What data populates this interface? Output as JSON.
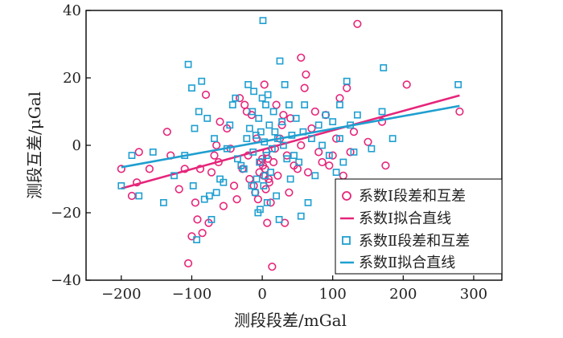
{
  "colors": {
    "series1": "#e6257a",
    "series2": "#1f9fd0",
    "axis": "#000000",
    "text": "#222222"
  },
  "chart_data": {
    "type": "scatter",
    "title": "",
    "xlabel": "测段段差/mGal",
    "ylabel": "测段互差/μGal",
    "xlim": [
      -250,
      340
    ],
    "ylim": [
      -40,
      40
    ],
    "xticks": [
      -200,
      -100,
      0,
      100,
      200,
      300
    ],
    "yticks": [
      -40,
      -20,
      0,
      20,
      40
    ],
    "grid": false,
    "legend_position": "bottom-right",
    "series": [
      {
        "name": "系数Ⅰ段差和互差",
        "marker": "circle",
        "color": "#e6257a",
        "points": [
          [
            -200,
            -7
          ],
          [
            -185,
            -15
          ],
          [
            -178,
            -11
          ],
          [
            -175,
            -2
          ],
          [
            -160,
            -7
          ],
          [
            -135,
            4
          ],
          [
            -130,
            -3
          ],
          [
            -118,
            -13
          ],
          [
            -110,
            -7
          ],
          [
            -105,
            -35
          ],
          [
            -100,
            -27
          ],
          [
            -95,
            -17
          ],
          [
            -92,
            -22
          ],
          [
            -88,
            -7
          ],
          [
            -85,
            -26
          ],
          [
            -80,
            15
          ],
          [
            -76,
            -23
          ],
          [
            -72,
            -8
          ],
          [
            -68,
            -3
          ],
          [
            -65,
            0
          ],
          [
            -62,
            -5
          ],
          [
            -60,
            7
          ],
          [
            -55,
            -18
          ],
          [
            -50,
            5
          ],
          [
            -45,
            -1
          ],
          [
            -40,
            -12
          ],
          [
            -36,
            -16
          ],
          [
            -32,
            14
          ],
          [
            -28,
            -7
          ],
          [
            -25,
            12
          ],
          [
            -22,
            10
          ],
          [
            -20,
            -3
          ],
          [
            -18,
            -10
          ],
          [
            -15,
            9
          ],
          [
            -12,
            -12
          ],
          [
            -10,
            -14
          ],
          [
            -8,
            2
          ],
          [
            -6,
            -16
          ],
          [
            -4,
            -8
          ],
          [
            -2,
            -5
          ],
          [
            0,
            -4
          ],
          [
            1,
            -6
          ],
          [
            2,
            -9
          ],
          [
            3,
            18
          ],
          [
            4,
            -7
          ],
          [
            5,
            -13
          ],
          [
            6,
            -2
          ],
          [
            7,
            -23
          ],
          [
            8,
            -4
          ],
          [
            9,
            -10
          ],
          [
            10,
            -11
          ],
          [
            12,
            -17
          ],
          [
            14,
            -36
          ],
          [
            16,
            -5
          ],
          [
            18,
            -1
          ],
          [
            20,
            12
          ],
          [
            22,
            -9
          ],
          [
            25,
            2
          ],
          [
            28,
            6
          ],
          [
            30,
            9
          ],
          [
            32,
            -23
          ],
          [
            35,
            -3
          ],
          [
            38,
            -14
          ],
          [
            40,
            8
          ],
          [
            45,
            -6
          ],
          [
            50,
            -7
          ],
          [
            55,
            0
          ],
          [
            60,
            17
          ],
          [
            62,
            21
          ],
          [
            65,
            -8
          ],
          [
            70,
            5
          ],
          [
            75,
            10
          ],
          [
            80,
            -2
          ],
          [
            85,
            -5
          ],
          [
            90,
            9
          ],
          [
            95,
            -6
          ],
          [
            100,
            -3
          ],
          [
            105,
            2
          ],
          [
            110,
            14
          ],
          [
            115,
            -9
          ],
          [
            120,
            17
          ],
          [
            125,
            -2
          ],
          [
            130,
            4
          ],
          [
            135,
            36
          ],
          [
            150,
            1
          ],
          [
            170,
            7
          ],
          [
            175,
            -6
          ],
          [
            205,
            18
          ],
          [
            280,
            10
          ],
          [
            55,
            26
          ]
        ]
      },
      {
        "name": "系数Ⅰ拟合直线",
        "marker": "line",
        "color": "#e6257a",
        "x": [
          -200,
          280
        ],
        "y": [
          -12.8,
          14.8
        ]
      },
      {
        "name": "系数Ⅱ段差和互差",
        "marker": "square",
        "color": "#1f9fd0",
        "points": [
          [
            -200,
            -12
          ],
          [
            -185,
            -3
          ],
          [
            -175,
            -15
          ],
          [
            -155,
            -2
          ],
          [
            -140,
            -17
          ],
          [
            -125,
            -9
          ],
          [
            -110,
            -3
          ],
          [
            -105,
            24
          ],
          [
            -100,
            17
          ],
          [
            -98,
            -12
          ],
          [
            -96,
            5
          ],
          [
            -93,
            -28
          ],
          [
            -90,
            10
          ],
          [
            -86,
            19
          ],
          [
            -82,
            -16
          ],
          [
            -78,
            8
          ],
          [
            -75,
            -15
          ],
          [
            -72,
            -22
          ],
          [
            -68,
            2
          ],
          [
            -65,
            -14
          ],
          [
            -60,
            -10
          ],
          [
            -55,
            -11
          ],
          [
            -50,
            -1
          ],
          [
            -46,
            6
          ],
          [
            -42,
            12
          ],
          [
            -38,
            14
          ],
          [
            -35,
            -4
          ],
          [
            -30,
            -6
          ],
          [
            -26,
            -7
          ],
          [
            -22,
            2
          ],
          [
            -20,
            18
          ],
          [
            -18,
            5
          ],
          [
            -15,
            -12
          ],
          [
            -14,
            10
          ],
          [
            -13,
            -2
          ],
          [
            -12,
            16
          ],
          [
            -10,
            -14
          ],
          [
            -9,
            3
          ],
          [
            -8,
            -10
          ],
          [
            -6,
            -20
          ],
          [
            -5,
            8
          ],
          [
            -4,
            -5
          ],
          [
            -3,
            -19
          ],
          [
            -2,
            4
          ],
          [
            0,
            14
          ],
          [
            1,
            37
          ],
          [
            2,
            -12
          ],
          [
            3,
            1
          ],
          [
            4,
            -9
          ],
          [
            5,
            12
          ],
          [
            6,
            -3
          ],
          [
            7,
            -17
          ],
          [
            8,
            15
          ],
          [
            10,
            6
          ],
          [
            12,
            -8
          ],
          [
            14,
            -1
          ],
          [
            16,
            10
          ],
          [
            18,
            4
          ],
          [
            20,
            -15
          ],
          [
            22,
            2
          ],
          [
            24,
            -22
          ],
          [
            25,
            25
          ],
          [
            28,
            7
          ],
          [
            30,
            0
          ],
          [
            32,
            18
          ],
          [
            35,
            -4
          ],
          [
            38,
            12
          ],
          [
            40,
            -10
          ],
          [
            42,
            3
          ],
          [
            45,
            -3
          ],
          [
            48,
            8
          ],
          [
            52,
            -5
          ],
          [
            55,
            -21
          ],
          [
            58,
            4
          ],
          [
            60,
            12
          ],
          [
            65,
            -17
          ],
          [
            70,
            2
          ],
          [
            75,
            -9
          ],
          [
            80,
            6
          ],
          [
            85,
            0
          ],
          [
            90,
            9
          ],
          [
            95,
            -3
          ],
          [
            100,
            7
          ],
          [
            105,
            -8
          ],
          [
            110,
            2
          ],
          [
            115,
            -5
          ],
          [
            120,
            19
          ],
          [
            125,
            6
          ],
          [
            130,
            -2
          ],
          [
            135,
            9
          ],
          [
            155,
            -1
          ],
          [
            170,
            10
          ],
          [
            172,
            23
          ],
          [
            185,
            2
          ],
          [
            278,
            18
          ],
          [
            110,
            12
          ]
        ]
      },
      {
        "name": "系数Ⅱ拟合直线",
        "marker": "line",
        "color": "#1f9fd0",
        "x": [
          -200,
          280
        ],
        "y": [
          -6.5,
          11.7
        ]
      }
    ]
  }
}
